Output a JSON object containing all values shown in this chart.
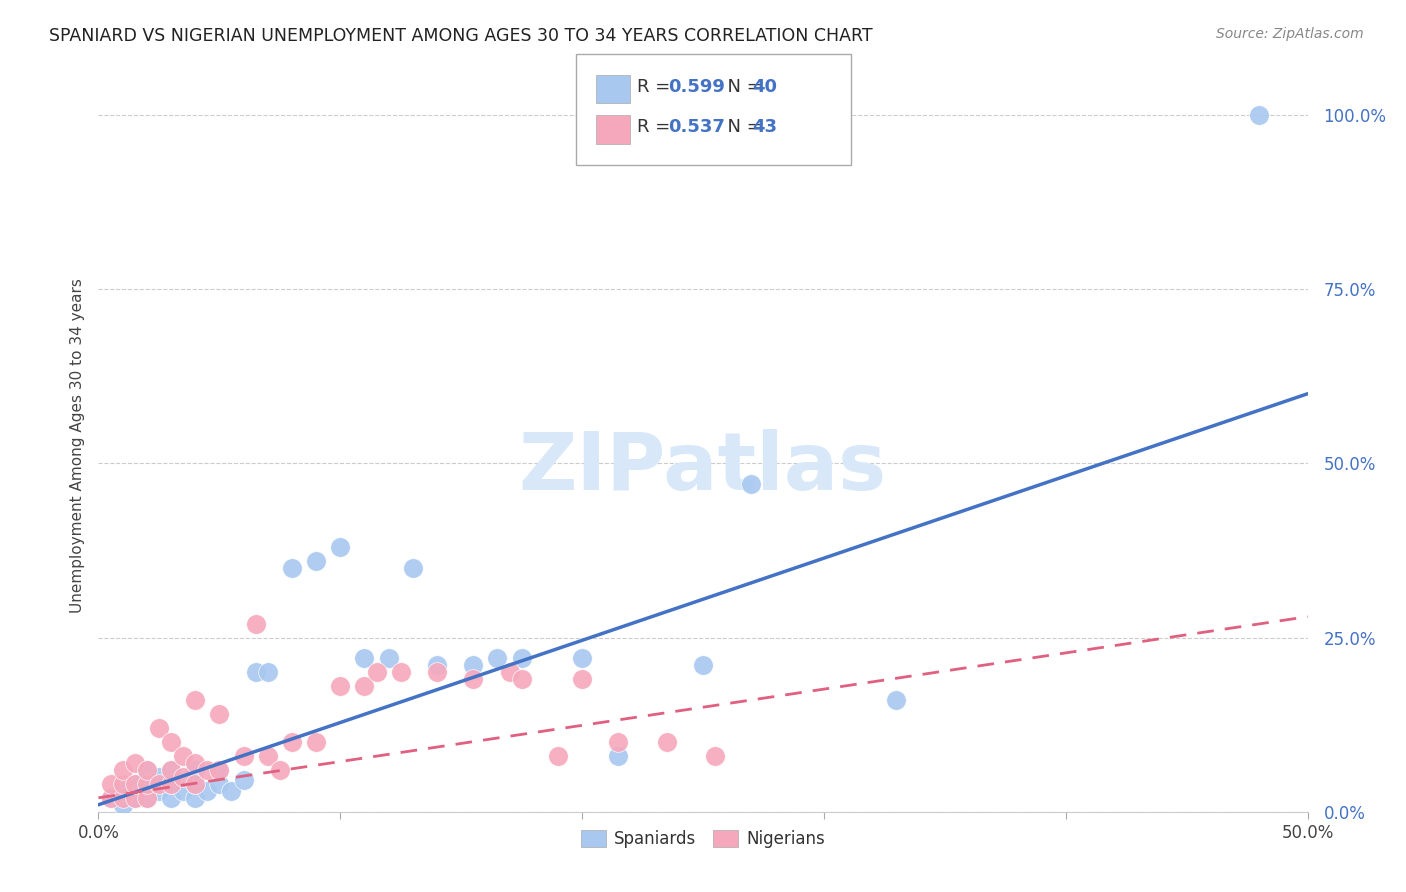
{
  "title": "SPANIARD VS NIGERIAN UNEMPLOYMENT AMONG AGES 30 TO 34 YEARS CORRELATION CHART",
  "source": "Source: ZipAtlas.com",
  "ylabel": "Unemployment Among Ages 30 to 34 years",
  "ytick_labels": [
    "0.0%",
    "25.0%",
    "50.0%",
    "75.0%",
    "100.0%"
  ],
  "ytick_values": [
    0.0,
    0.25,
    0.5,
    0.75,
    1.0
  ],
  "xlim": [
    0.0,
    0.5
  ],
  "ylim": [
    0.0,
    1.05
  ],
  "spaniard_color": "#A8C8F0",
  "nigerian_color": "#F5A8BC",
  "spaniard_line_color": "#4472C4",
  "nigerian_line_color": "#E06080",
  "watermark_color": "#D8E8F8",
  "legend_blue_color": "#4472C4",
  "spaniard_r": "0.599",
  "spaniard_n": "40",
  "nigerian_r": "0.537",
  "nigerian_n": "43",
  "spaniard_line_x0": 0.0,
  "spaniard_line_y0": 0.01,
  "spaniard_line_x1": 0.5,
  "spaniard_line_y1": 0.6,
  "nigerian_line_x0": 0.0,
  "nigerian_line_y0": 0.02,
  "nigerian_line_x1": 0.5,
  "nigerian_line_y1": 0.28,
  "spaniard_x": [
    0.005,
    0.01,
    0.01,
    0.015,
    0.015,
    0.02,
    0.02,
    0.02,
    0.025,
    0.025,
    0.03,
    0.03,
    0.03,
    0.035,
    0.04,
    0.04,
    0.04,
    0.045,
    0.05,
    0.05,
    0.055,
    0.06,
    0.065,
    0.07,
    0.08,
    0.09,
    0.1,
    0.11,
    0.12,
    0.13,
    0.14,
    0.155,
    0.165,
    0.175,
    0.2,
    0.215,
    0.25,
    0.27,
    0.33,
    0.48
  ],
  "spaniard_y": [
    0.02,
    0.01,
    0.03,
    0.02,
    0.04,
    0.02,
    0.04,
    0.06,
    0.03,
    0.05,
    0.02,
    0.04,
    0.06,
    0.03,
    0.02,
    0.04,
    0.06,
    0.03,
    0.04,
    0.06,
    0.03,
    0.045,
    0.2,
    0.2,
    0.35,
    0.36,
    0.38,
    0.22,
    0.22,
    0.35,
    0.21,
    0.21,
    0.22,
    0.22,
    0.22,
    0.08,
    0.21,
    0.47,
    0.16,
    1.0
  ],
  "nigerian_x": [
    0.005,
    0.005,
    0.01,
    0.01,
    0.01,
    0.015,
    0.015,
    0.015,
    0.02,
    0.02,
    0.02,
    0.025,
    0.025,
    0.03,
    0.03,
    0.03,
    0.035,
    0.035,
    0.04,
    0.04,
    0.04,
    0.045,
    0.05,
    0.05,
    0.06,
    0.065,
    0.07,
    0.075,
    0.08,
    0.09,
    0.1,
    0.11,
    0.115,
    0.125,
    0.14,
    0.155,
    0.17,
    0.175,
    0.19,
    0.2,
    0.215,
    0.235,
    0.255
  ],
  "nigerian_y": [
    0.02,
    0.04,
    0.02,
    0.04,
    0.06,
    0.02,
    0.04,
    0.07,
    0.02,
    0.04,
    0.06,
    0.04,
    0.12,
    0.04,
    0.06,
    0.1,
    0.05,
    0.08,
    0.04,
    0.07,
    0.16,
    0.06,
    0.06,
    0.14,
    0.08,
    0.27,
    0.08,
    0.06,
    0.1,
    0.1,
    0.18,
    0.18,
    0.2,
    0.2,
    0.2,
    0.19,
    0.2,
    0.19,
    0.08,
    0.19,
    0.1,
    0.1,
    0.08
  ]
}
